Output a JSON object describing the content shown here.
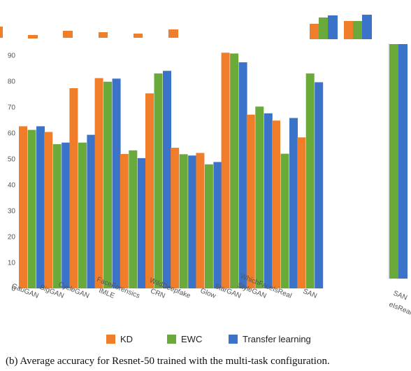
{
  "caption": "(b) Average accuracy for Resnet-50 trained with the multi-task configuration.",
  "chart_data": {
    "type": "bar",
    "categories": [
      "GauGAN",
      "BigGAN",
      "CycleGAN",
      "IMLE",
      "FaceForensics",
      "CRN",
      "WildDeepfake",
      "Glow",
      "StarGAN",
      "StyleGAN",
      "WhichFaceIsReal",
      "SAN"
    ],
    "series": [
      {
        "name": "KD",
        "color": "#f07d2a",
        "values": [
          62.6,
          60.4,
          77.3,
          81.2,
          51.9,
          75.3,
          54.3,
          52.3,
          91.0,
          67.1,
          64.8,
          58.3
        ]
      },
      {
        "name": "EWC",
        "color": "#6aaa3a",
        "values": [
          61.2,
          55.7,
          56.3,
          79.8,
          53.3,
          83.0,
          51.8,
          47.9,
          90.7,
          70.2,
          52.0,
          83.0
        ]
      },
      {
        "name": "Transfer learning",
        "color": "#3b73c8",
        "values": [
          62.6,
          56.3,
          59.3,
          81.0,
          50.3,
          84.0,
          51.3,
          48.8,
          87.3,
          67.6,
          65.8,
          79.6
        ]
      }
    ],
    "ylim": [
      0,
      100
    ],
    "yticks": [
      0,
      10,
      20,
      30,
      40,
      50,
      60,
      70,
      80,
      90
    ],
    "grid": false,
    "legend_position": "bottom",
    "partial_right_panel": {
      "bar_colors": [
        "#6aaa3a",
        "#3b73c8"
      ],
      "tick_labels": [
        "SAN",
        "eIsReal"
      ]
    },
    "partial_top_panel": {
      "bar_colors": [
        "#f07d2a",
        "#6aaa3a",
        "#3b73c8"
      ]
    }
  }
}
